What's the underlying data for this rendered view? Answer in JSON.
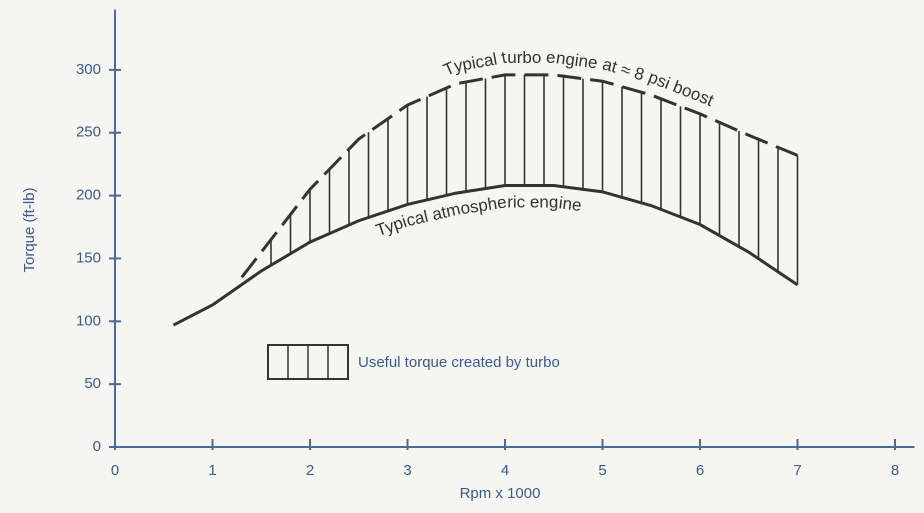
{
  "chart_data": {
    "type": "line",
    "xlabel": "Rpm x 1000",
    "ylabel": "Torque (ft-lb)",
    "xlim": [
      0,
      8.2
    ],
    "xticks": [
      0,
      1,
      2,
      3,
      4,
      5,
      6,
      7,
      8
    ],
    "ylim": [
      0,
      348
    ],
    "yticks": [
      0,
      50,
      100,
      150,
      200,
      250,
      300
    ],
    "legend_label": "Useful torque created by turbo",
    "series": [
      {
        "name": "Typical turbo engine at ≈ 8 psi boost",
        "color": "#333333",
        "dashed": true,
        "x": [
          1.3,
          1.5,
          2,
          2.5,
          3,
          3.5,
          4,
          4.5,
          5,
          5.5,
          6,
          6.5,
          7
        ],
        "values": [
          135,
          155,
          205,
          245,
          272,
          289,
          296,
          296,
          291,
          280,
          265,
          248,
          232
        ]
      },
      {
        "name": "Typical atmospheric engine",
        "color": "#333333",
        "dashed": false,
        "x": [
          0.6,
          1,
          1.5,
          2,
          2.5,
          3,
          3.5,
          4,
          4.5,
          5,
          5.5,
          6,
          6.5,
          7
        ],
        "values": [
          97,
          113,
          140,
          163,
          180,
          193,
          202,
          208,
          208,
          203,
          192,
          177,
          155,
          129
        ]
      }
    ]
  }
}
